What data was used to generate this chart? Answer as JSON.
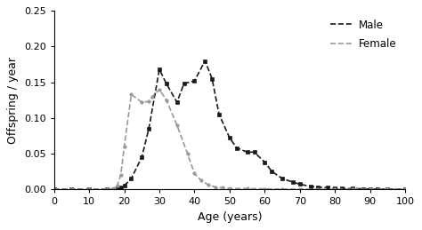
{
  "male_x": [
    0,
    5,
    10,
    15,
    17,
    18,
    19,
    20,
    22,
    25,
    27,
    30,
    32,
    35,
    37,
    40,
    43,
    45,
    47,
    50,
    52,
    55,
    57,
    60,
    62,
    65,
    68,
    70,
    73,
    75,
    78,
    80,
    82,
    85,
    88,
    90,
    92,
    95,
    100
  ],
  "male_y": [
    0,
    0,
    0,
    0,
    0,
    0.001,
    0.002,
    0.005,
    0.015,
    0.045,
    0.085,
    0.168,
    0.148,
    0.122,
    0.148,
    0.152,
    0.18,
    0.155,
    0.105,
    0.072,
    0.058,
    0.052,
    0.052,
    0.038,
    0.025,
    0.015,
    0.01,
    0.007,
    0.004,
    0.003,
    0.002,
    0.001,
    0.001,
    0.001,
    0.0005,
    0.0002,
    0.0001,
    0.0,
    0.0
  ],
  "female_x": [
    0,
    5,
    10,
    15,
    17,
    18,
    19,
    20,
    22,
    25,
    27,
    28,
    30,
    32,
    35,
    38,
    40,
    42,
    44,
    46,
    48,
    50,
    55,
    60,
    65,
    70,
    75,
    80,
    85,
    90,
    95,
    100
  ],
  "female_y": [
    0,
    0,
    0,
    0,
    0.001,
    0.005,
    0.02,
    0.06,
    0.133,
    0.122,
    0.123,
    0.13,
    0.14,
    0.125,
    0.09,
    0.05,
    0.022,
    0.012,
    0.006,
    0.003,
    0.002,
    0.001,
    0.001,
    0.0005,
    0.0002,
    0.0001,
    0.0,
    0.0,
    0.0,
    0.0,
    0.0,
    0.0
  ],
  "male_color": "#1a1a1a",
  "female_color": "#999999",
  "xlabel": "Age (years)",
  "ylabel": "Offspring / year",
  "xlim": [
    0,
    100
  ],
  "ylim": [
    0,
    0.25
  ],
  "xticks": [
    0,
    10,
    20,
    30,
    40,
    50,
    60,
    70,
    80,
    90,
    100
  ],
  "yticks": [
    0.0,
    0.05,
    0.1,
    0.15,
    0.2,
    0.25
  ],
  "legend_labels": [
    "Male",
    "Female"
  ],
  "background_color": "#ffffff",
  "figsize": [
    4.74,
    2.59
  ],
  "dpi": 100
}
